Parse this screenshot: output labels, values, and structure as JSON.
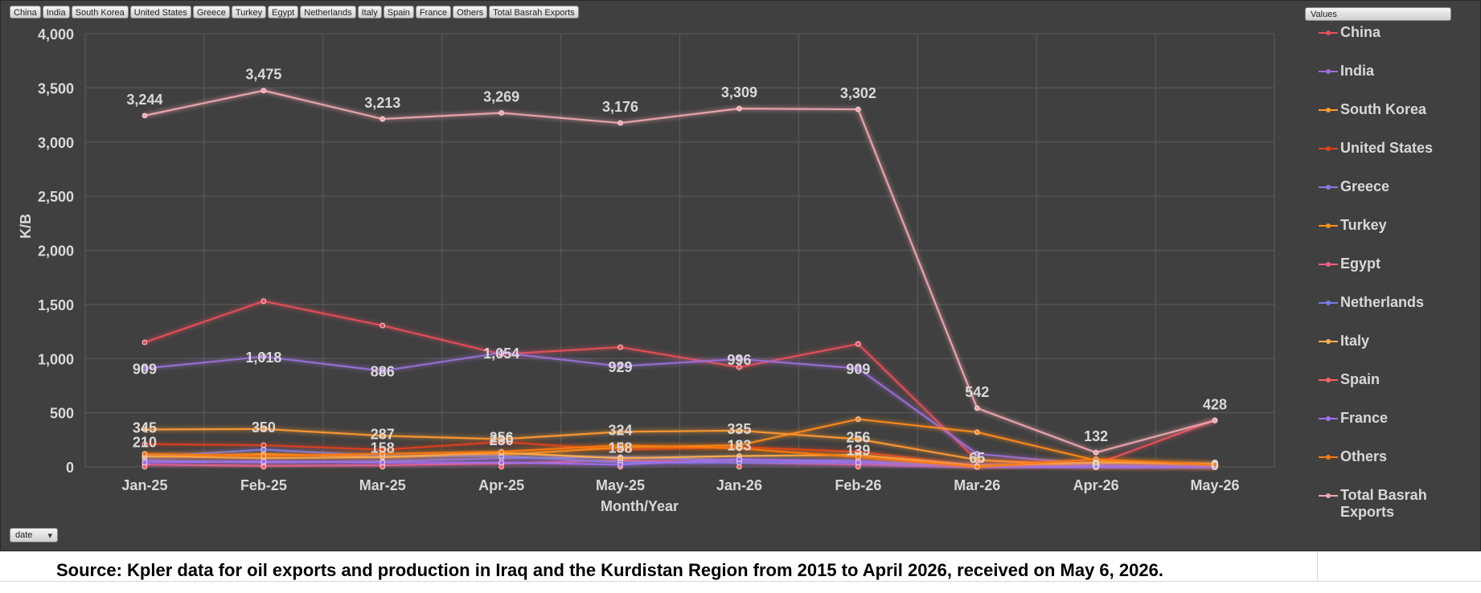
{
  "field_buttons": [
    "China",
    "India",
    "South Korea",
    "United  States",
    "Greece",
    "Turkey",
    "Egypt",
    "Netherlands",
    "Italy",
    "Spain",
    "France",
    "Others",
    "Total Basrah Exports"
  ],
  "values_button": "Values",
  "date_button": "date",
  "source_text": "Source: Kpler data for oil exports and production in Iraq and the Kurdistan Region from 2015 to April 2026, received on May 6, 2026.",
  "chart_data": {
    "type": "line",
    "title": "",
    "xlabel": "Month/Year",
    "ylabel": "K/B",
    "ylim": [
      0,
      4000
    ],
    "yticks": [
      0,
      500,
      1000,
      1500,
      2000,
      2500,
      3000,
      3500,
      4000
    ],
    "ytick_labels": [
      "0",
      "500",
      "1,000",
      "1,500",
      "2,000",
      "2,500",
      "3,000",
      "3,500",
      "4,000"
    ],
    "grid": true,
    "legend_position": "right",
    "categories": [
      "Jan-25",
      "Feb-25",
      "Mar-25",
      "Apr-25",
      "May-25",
      "Jan-26",
      "Feb-26",
      "Mar-26",
      "Apr-26",
      "May-26"
    ],
    "series": [
      {
        "name": "China",
        "color": "#e8505a",
        "values": [
          1150,
          1530,
          1305,
          1040,
          1105,
          920,
          1135,
          60,
          25,
          430
        ],
        "labels": []
      },
      {
        "name": "India",
        "color": "#9b6fd6",
        "values": [
          909,
          1018,
          886,
          1054,
          929,
          996,
          909,
          120,
          20,
          5
        ],
        "labels": [
          "909",
          "1,018",
          "886",
          "1,054",
          "929",
          "996",
          "909",
          "",
          "",
          ""
        ]
      },
      {
        "name": "South Korea",
        "color": "#ff9a30",
        "values": [
          345,
          350,
          287,
          256,
          324,
          335,
          256,
          65,
          0,
          0
        ],
        "labels": [
          "345",
          "350",
          "287",
          "256",
          "324",
          "335",
          "256",
          "65",
          "0",
          "0"
        ]
      },
      {
        "name": "United  States",
        "color": "#e0401a",
        "values": [
          210,
          200,
          158,
          230,
          158,
          183,
          139,
          10,
          0,
          0
        ],
        "labels": [
          "210",
          "",
          "158",
          "230",
          "158",
          "183",
          "139",
          "",
          "",
          ""
        ]
      },
      {
        "name": "Greece",
        "color": "#8a78e0",
        "values": [
          60,
          40,
          50,
          80,
          90,
          60,
          60,
          0,
          0,
          0
        ],
        "labels": []
      },
      {
        "name": "Turkey",
        "color": "#ff8c1a",
        "values": [
          90,
          120,
          90,
          110,
          180,
          200,
          440,
          320,
          60,
          10
        ],
        "labels": []
      },
      {
        "name": "Egypt",
        "color": "#f06080",
        "values": [
          20,
          10,
          15,
          30,
          60,
          40,
          20,
          0,
          0,
          0
        ],
        "labels": []
      },
      {
        "name": "Netherlands",
        "color": "#7a7ae8",
        "values": [
          90,
          160,
          100,
          100,
          40,
          40,
          40,
          0,
          0,
          0
        ],
        "labels": []
      },
      {
        "name": "Italy",
        "color": "#ffb050",
        "values": [
          100,
          80,
          90,
          130,
          80,
          100,
          110,
          10,
          40,
          30
        ],
        "labels": []
      },
      {
        "name": "Spain",
        "color": "#ff6060",
        "values": [
          0,
          0,
          0,
          0,
          0,
          0,
          0,
          0,
          0,
          0
        ],
        "labels": []
      },
      {
        "name": "France",
        "color": "#a070f0",
        "values": [
          40,
          50,
          40,
          40,
          20,
          70,
          40,
          0,
          0,
          0
        ],
        "labels": []
      },
      {
        "name": "Others",
        "color": "#ff7a10",
        "values": [
          120,
          100,
          120,
          140,
          200,
          170,
          90,
          0,
          70,
          20
        ],
        "labels": []
      },
      {
        "name": "Total Basrah Exports",
        "color": "#f0a8b0",
        "values": [
          3244,
          3475,
          3213,
          3269,
          3176,
          3309,
          3302,
          542,
          132,
          428
        ],
        "labels": [
          "3,244",
          "3,475",
          "3,213",
          "3,269",
          "3,176",
          "3,309",
          "3,302",
          "542",
          "132",
          "428"
        ]
      }
    ]
  }
}
